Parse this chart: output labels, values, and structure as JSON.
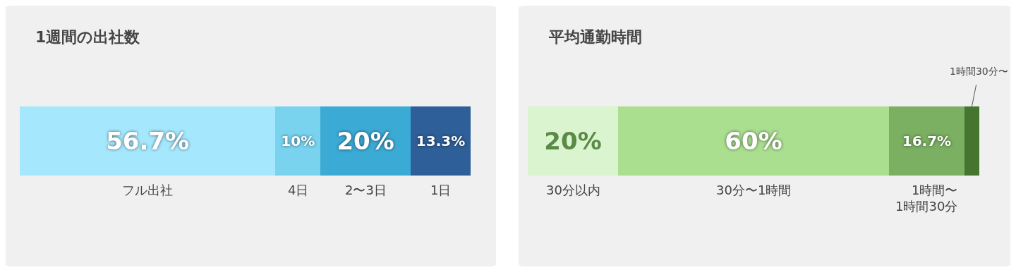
{
  "chart_data": [
    {
      "type": "bar",
      "orientation": "horizontal",
      "stacked": true,
      "title": "1週間の出社数",
      "categories": [
        null
      ],
      "xlim": [
        0,
        100
      ],
      "tick_labels": false,
      "series": [
        {
          "name": "フル出社",
          "color": "#a5e8fd",
          "values": [
            56.7
          ],
          "value_labels": [
            "56.7%"
          ]
        },
        {
          "name": "4日",
          "color": "#79d3ef",
          "values": [
            10
          ],
          "value_labels": [
            "10%"
          ]
        },
        {
          "name": "2〜3日",
          "color": "#3baad5",
          "values": [
            20
          ],
          "value_labels": [
            "20%"
          ]
        },
        {
          "name": "1日",
          "color": "#2e5f98",
          "values": [
            13.3
          ],
          "value_labels": [
            "13.3%"
          ]
        }
      ]
    },
    {
      "type": "bar",
      "orientation": "horizontal",
      "stacked": true,
      "title": "平均通勤時間",
      "categories": [
        null
      ],
      "xlim": [
        0,
        100
      ],
      "tick_labels": false,
      "series": [
        {
          "name": "30分以内",
          "color": "#d9f4cf",
          "values": [
            20
          ],
          "value_labels": [
            "20%"
          ]
        },
        {
          "name": "30分〜1時間",
          "color": "#aadf8f",
          "values": [
            60
          ],
          "value_labels": [
            "60%"
          ]
        },
        {
          "name": "1時間〜\n1時間30分",
          "color": "#7baf62",
          "values": [
            16.7
          ],
          "value_labels": [
            "16.7%"
          ]
        },
        {
          "name": "1時間30分〜",
          "color": "#467530",
          "values": [
            3.3
          ],
          "value_labels": [
            null
          ]
        }
      ]
    }
  ]
}
